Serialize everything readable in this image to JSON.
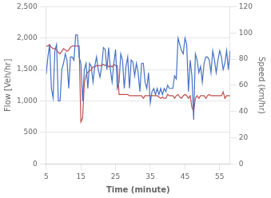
{
  "chart_data": {
    "type": "line",
    "xlabel": "Time (minute)",
    "ylabel": "Flow [Veh/hr]",
    "y2label": "Speed (km/hr)",
    "x": [
      5.0,
      5.5,
      6.0,
      6.5,
      7.0,
      7.5,
      8.0,
      8.5,
      9.0,
      9.5,
      10.0,
      10.5,
      11.0,
      11.5,
      12.0,
      12.5,
      13.0,
      13.5,
      14.0,
      14.5,
      15.0,
      15.5,
      16.0,
      16.5,
      17.0,
      17.5,
      18.0,
      18.5,
      19.0,
      19.5,
      20.0,
      20.5,
      21.0,
      21.5,
      22.0,
      22.5,
      23.0,
      23.5,
      24.0,
      24.5,
      25.0,
      25.5,
      26.0,
      26.5,
      27.0,
      27.5,
      28.0,
      28.5,
      29.0,
      29.5,
      30.0,
      30.5,
      31.0,
      31.5,
      32.0,
      32.5,
      33.0,
      33.5,
      34.0,
      34.5,
      35.0,
      35.5,
      36.0,
      36.5,
      37.0,
      37.5,
      38.0,
      38.5,
      39.0,
      39.5,
      40.0,
      40.5,
      41.0,
      41.5,
      42.0,
      42.5,
      43.0,
      43.5,
      44.0,
      44.5,
      45.0,
      45.5,
      46.0,
      46.5,
      47.0,
      47.5,
      48.0,
      48.5,
      49.0,
      49.5,
      50.0,
      50.5,
      51.0,
      51.5,
      52.0,
      52.5,
      53.0,
      53.5,
      54.0,
      54.5,
      55.0,
      55.5,
      56.0,
      56.5,
      57.0,
      57.5,
      58.0
    ],
    "xlim": [
      5,
      58
    ],
    "xticks": [
      5,
      15,
      25,
      35,
      45,
      55
    ],
    "ylim": [
      0,
      2500
    ],
    "yticks": [
      0,
      500,
      1000,
      1500,
      2000,
      2500
    ],
    "y2lim": [
      0,
      120
    ],
    "y2ticks": [
      0,
      20,
      40,
      60,
      80,
      100,
      120
    ],
    "grid": "y",
    "series": [
      {
        "color": "#4472C4",
        "values": [
          1430,
          1700,
          1900,
          1200,
          1050,
          1800,
          1900,
          1000,
          1000,
          1500,
          1600,
          1750,
          1650,
          1200,
          1700,
          1700,
          1650,
          2050,
          2050,
          1700,
          1600,
          1000,
          1500,
          1600,
          1200,
          1600,
          1550,
          1300,
          1550,
          1700,
          1500,
          1380,
          1550,
          1850,
          1820,
          1500,
          1850,
          1500,
          1300,
          1600,
          1820,
          1200,
          1300,
          1750,
          1650,
          1200,
          1550,
          1700,
          1200,
          1650,
          1620,
          1400,
          1600,
          1450,
          1150,
          1600,
          1600,
          1300,
          1200,
          1450,
          970,
          1150,
          1200,
          1100,
          1200,
          1100,
          1200,
          1100,
          1200,
          1150,
          1250,
          1200,
          1200,
          1200,
          1400,
          1350,
          2000,
          1900,
          1800,
          1750,
          2000,
          1900,
          1150,
          1650,
          1400,
          700,
          1750,
          1650,
          1450,
          1550,
          1300,
          1600,
          1700,
          1700,
          1650,
          1450,
          1800,
          1650,
          1450,
          1650,
          1800,
          1700,
          1500,
          1600,
          1800,
          1500,
          1800
        ]
      },
      {
        "color": "#C0504D",
        "axis": "y2",
        "values": [
          90,
          90,
          91,
          89,
          88,
          88,
          87,
          85,
          84,
          86,
          88,
          87,
          86,
          87,
          89,
          90,
          90,
          90,
          90,
          90,
          32,
          35,
          62,
          68,
          70,
          71,
          72,
          74,
          74,
          75,
          75,
          75,
          75,
          76,
          75,
          76,
          74,
          75,
          74,
          76,
          75,
          75,
          53,
          53,
          53,
          53,
          53,
          53,
          52,
          52,
          52,
          52,
          52,
          52,
          52,
          52,
          50,
          52,
          52,
          52,
          52,
          52,
          52,
          52,
          52,
          51,
          50,
          51,
          50,
          50,
          53,
          52,
          52,
          52,
          50,
          52,
          53,
          51,
          50,
          52,
          53,
          52,
          50,
          52,
          43,
          40,
          50,
          52,
          50,
          52,
          52,
          52,
          50,
          52,
          53,
          52,
          52,
          52,
          52,
          52,
          52,
          52,
          55,
          50,
          52,
          52,
          52
        ]
      }
    ]
  }
}
